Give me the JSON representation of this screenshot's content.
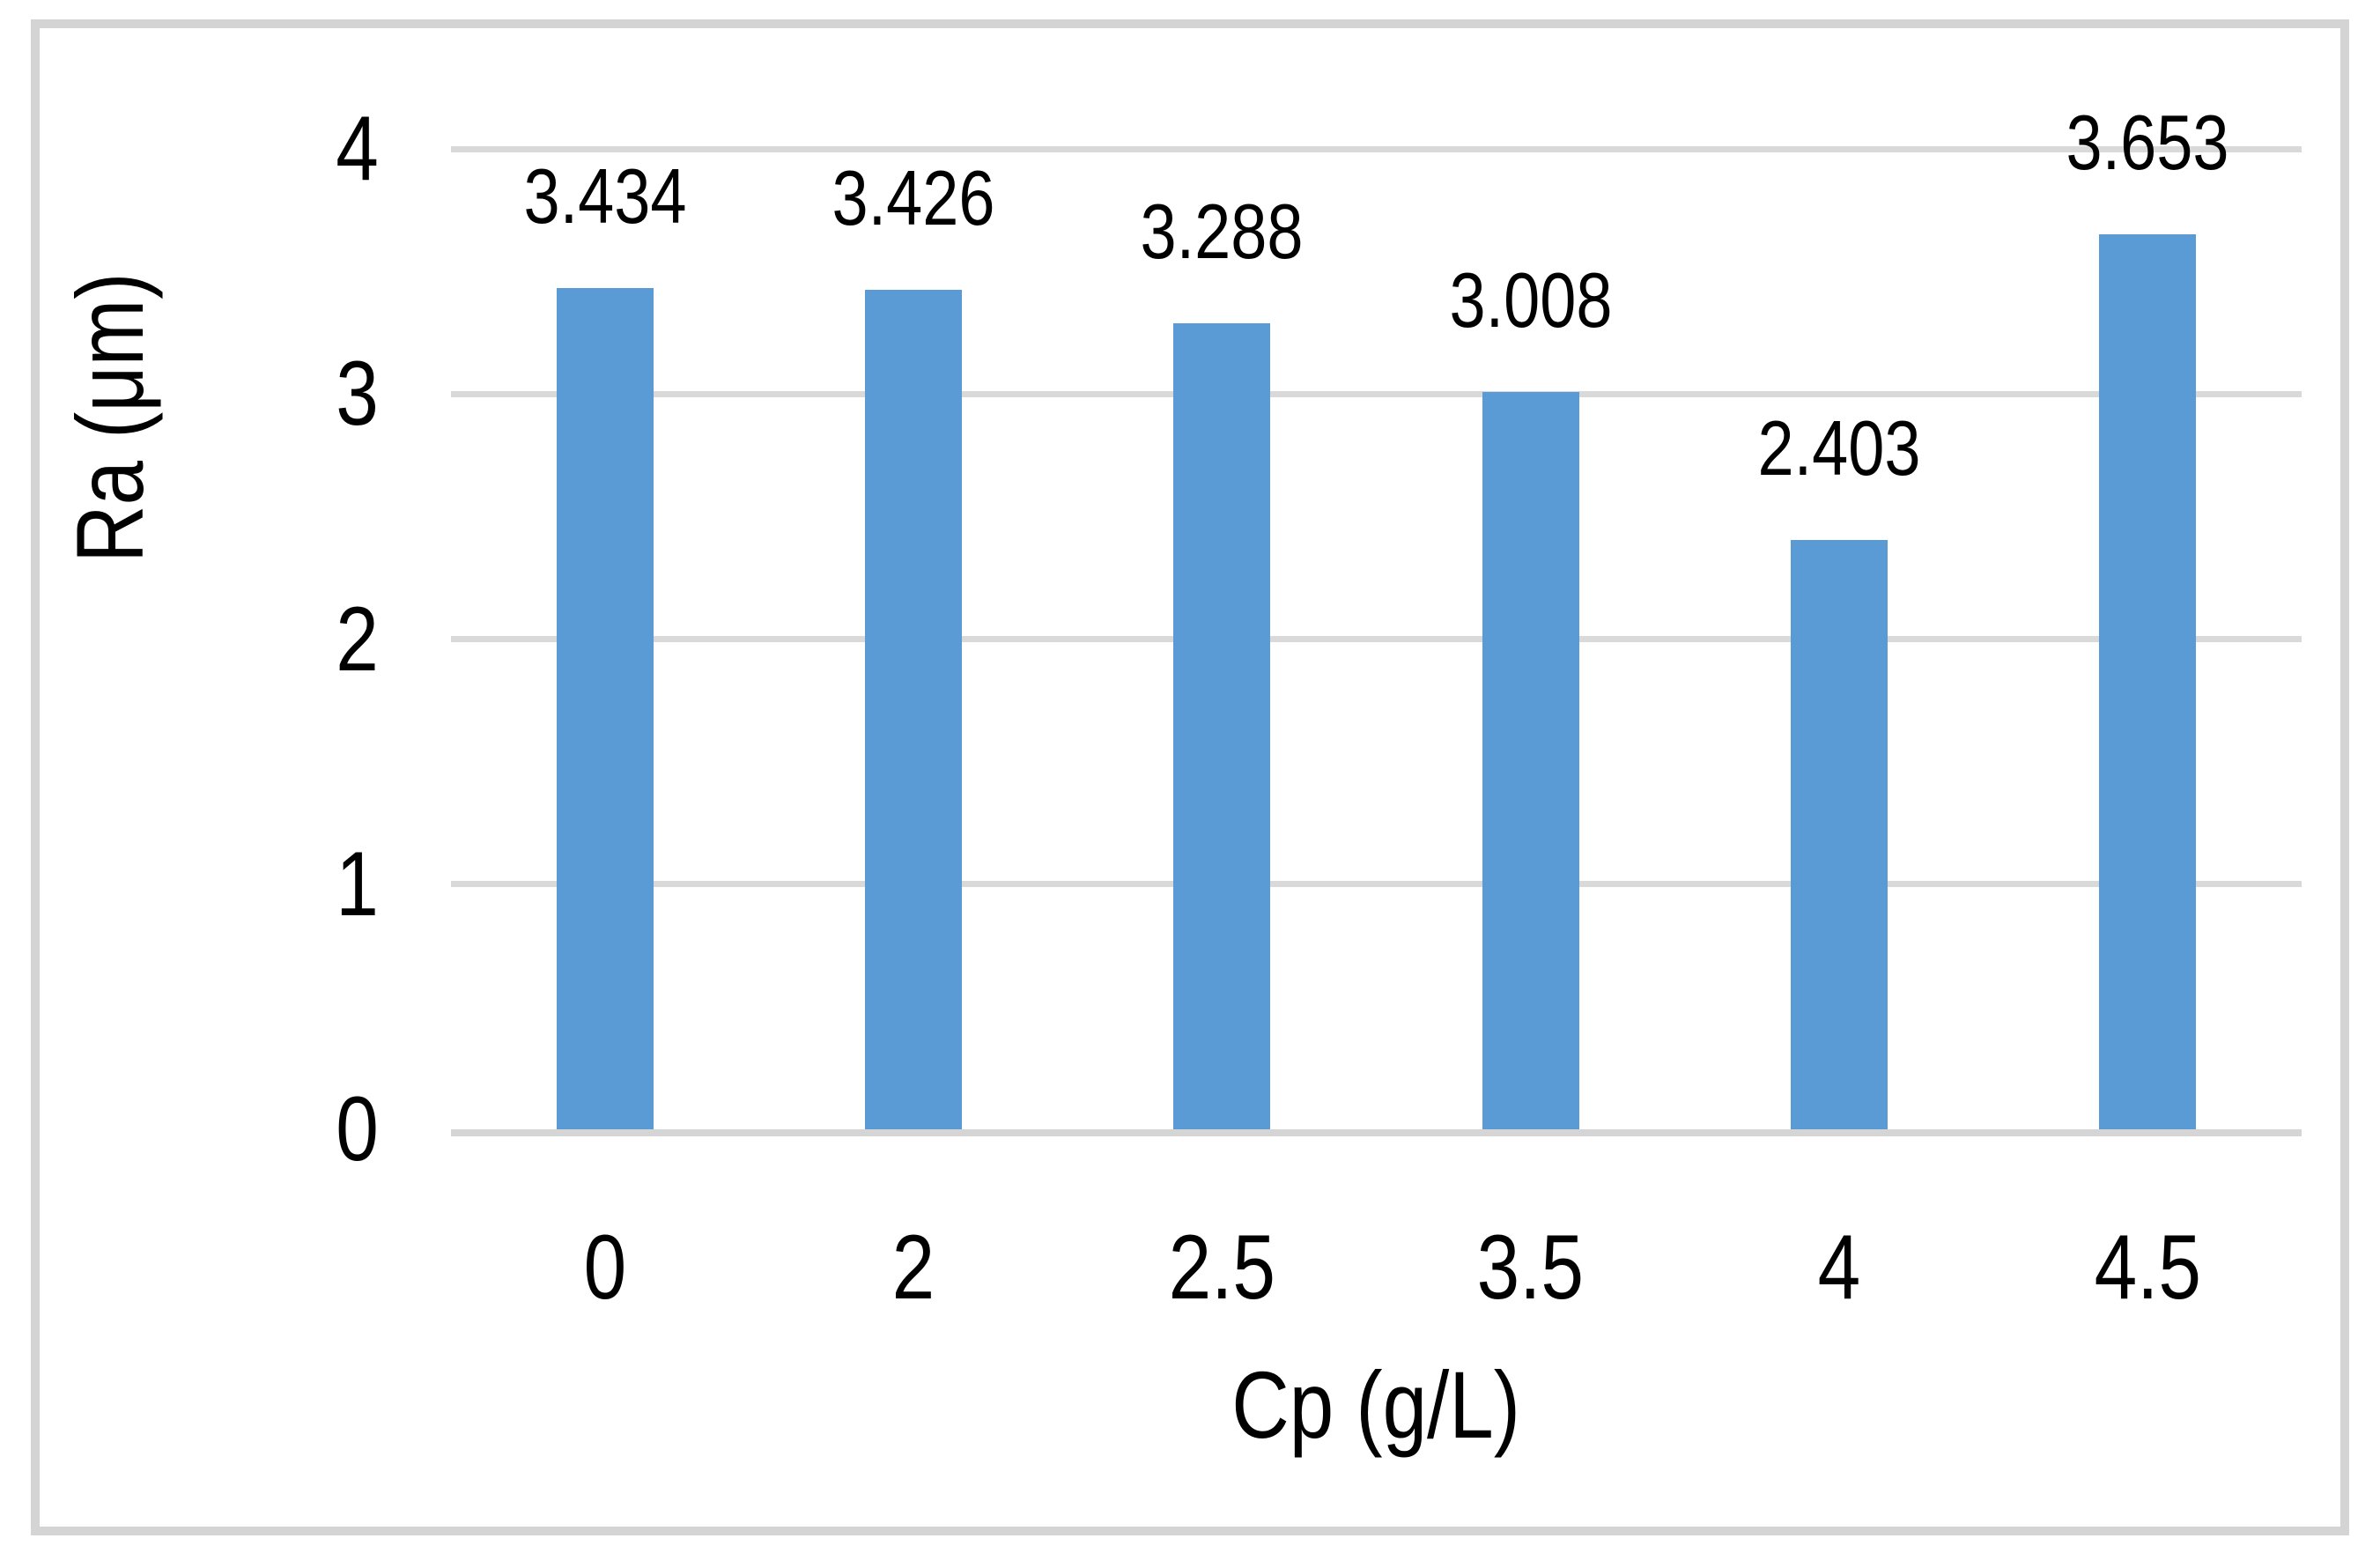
{
  "chart_data": {
    "type": "bar",
    "title": "",
    "xlabel": "Cp (g/L)",
    "ylabel": "Ra (μm)",
    "categories": [
      "0",
      "2",
      "2.5",
      "3.5",
      "4",
      "4.5"
    ],
    "values": [
      3.434,
      3.426,
      3.288,
      3.008,
      2.403,
      3.653
    ],
    "data_labels": [
      "3.434",
      "3.426",
      "3.288",
      "3.008",
      "2.403",
      "3.653"
    ],
    "ylim": [
      0,
      4
    ],
    "yticks": [
      4,
      3,
      2,
      1,
      0
    ],
    "grid": "horizontal-only",
    "legend": "none",
    "colors": {
      "bar_fill": "#5b9bd5",
      "gridline": "#d9d9d9",
      "axis_line": "#d5d5d5",
      "outer_border": "#d4d4d4",
      "text": "#000000",
      "background": "#ffffff"
    }
  }
}
